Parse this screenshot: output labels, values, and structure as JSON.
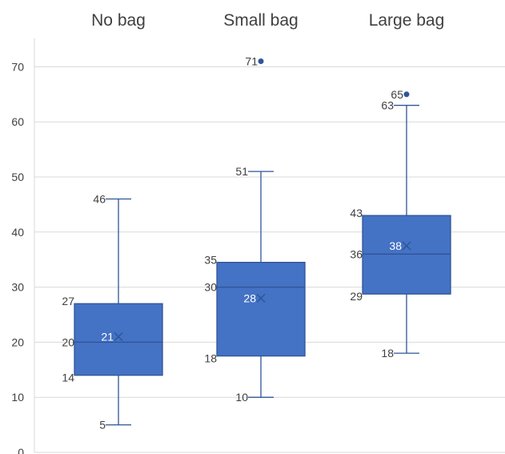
{
  "chart_data": {
    "type": "box",
    "title": "",
    "xlabel": "",
    "ylabel": "",
    "ylim": [
      0,
      75
    ],
    "yticks": [
      0,
      10,
      20,
      30,
      40,
      50,
      60,
      70
    ],
    "grid": "horizontal",
    "legend": "none",
    "colors": {
      "box_fill": "#4472c4",
      "box_stroke": "#2f5597",
      "grid": "#d9d9d9",
      "text": "#404040"
    },
    "categories": [
      "No bag",
      "Small bag",
      "Large bag"
    ],
    "boxes": [
      {
        "category": "No bag",
        "min": 5,
        "q1": 14,
        "median": 20,
        "q3": 27,
        "max": 46,
        "mean": 21,
        "outliers": [],
        "labels": {
          "min": "5",
          "q1": "14",
          "median": "20",
          "q3": "27",
          "max": "46",
          "mean": "21"
        }
      },
      {
        "category": "Small bag",
        "min": 10,
        "q1": 17.5,
        "median": 30,
        "q3": 34.5,
        "max": 51,
        "mean": 28,
        "outliers": [
          71
        ],
        "labels": {
          "min": "10",
          "q1": "18",
          "median": "30",
          "q3": "35",
          "max": "51",
          "mean": "28",
          "outliers": [
            "71"
          ]
        }
      },
      {
        "category": "Large bag",
        "min": 18,
        "q1": 28.75,
        "median": 36,
        "q3": 43,
        "max": 63,
        "mean": 37.5,
        "outliers": [
          65
        ],
        "labels": {
          "min": "18",
          "q1": "29",
          "median": "36",
          "q3": "43",
          "max": "63",
          "mean": "38",
          "outliers": [
            "65"
          ]
        }
      }
    ]
  }
}
